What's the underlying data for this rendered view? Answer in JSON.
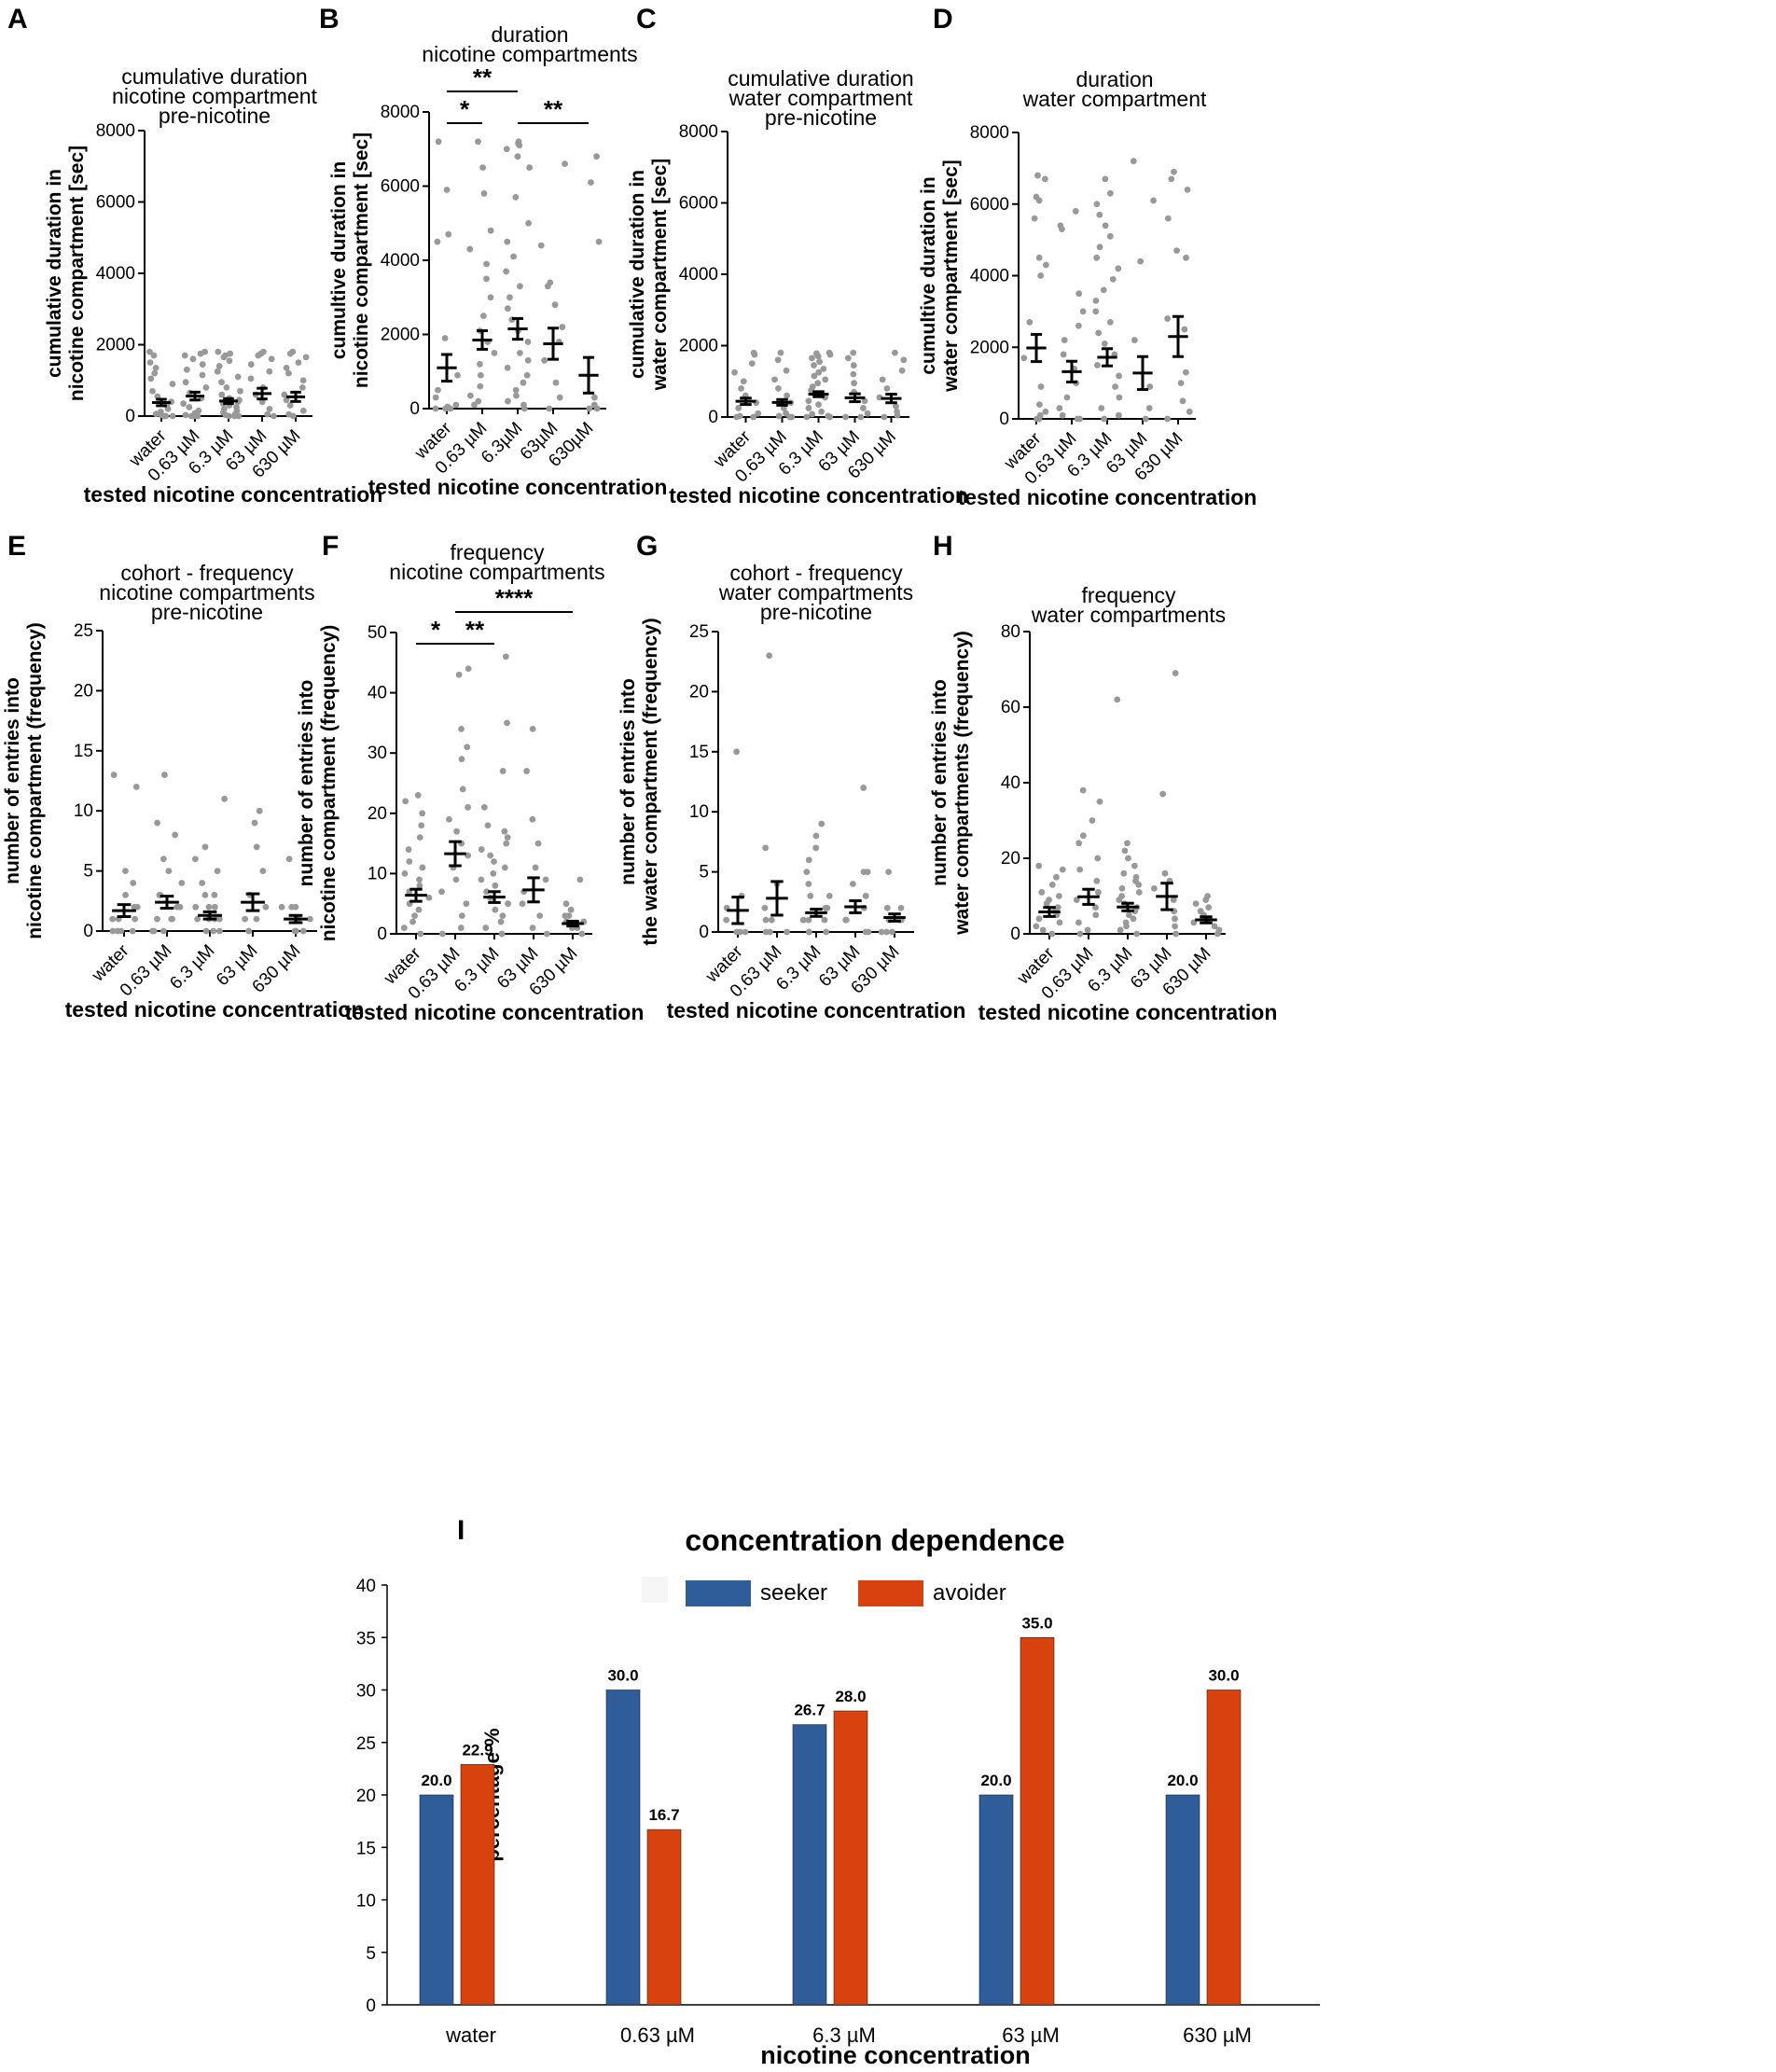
{
  "colors": {
    "dot": "#999999",
    "seeker": "#2f5d9a",
    "avoider": "#d8420f",
    "axis": "#000000"
  },
  "chart_data": [
    {
      "panel": "A",
      "type": "scatter",
      "title": [
        "cumulative duration",
        "nicotine compartment",
        "pre-nicotine"
      ],
      "ylabel": [
        "cumulative duration in",
        "nicotine compartment [sec]"
      ],
      "xlabel": "tested nicotine concentration",
      "categories": [
        "water",
        "0.63 µM",
        "6.3 µM",
        "63 µM",
        "630 µM"
      ],
      "ylim": [
        0,
        8000
      ],
      "yticks": [
        0,
        2000,
        4000,
        6000,
        8000
      ],
      "mean": [
        380,
        560,
        420,
        630,
        540
      ],
      "sem": [
        90,
        110,
        70,
        150,
        130
      ],
      "points": [
        [
          1800,
          1700,
          1500,
          1350,
          1200,
          1050,
          900,
          700,
          550,
          400,
          300,
          200,
          120,
          60,
          30,
          0,
          0,
          0
        ],
        [
          1800,
          1750,
          1700,
          1600,
          1450,
          1300,
          1150,
          950,
          800,
          650,
          500,
          350,
          250,
          150,
          80,
          30,
          0,
          0,
          0
        ],
        [
          1800,
          1750,
          1700,
          1650,
          1550,
          1400,
          1250,
          1100,
          950,
          800,
          700,
          600,
          500,
          450,
          400,
          350,
          300,
          250,
          200,
          150,
          100,
          50,
          30,
          0,
          0,
          0
        ],
        [
          1800,
          1750,
          1700,
          1600,
          1450,
          1250,
          1050,
          800,
          600,
          400,
          200,
          50,
          0
        ],
        [
          1800,
          1750,
          1650,
          1500,
          1350,
          1200,
          1000,
          800,
          600,
          450,
          300,
          150,
          50,
          0
        ]
      ],
      "significance": []
    },
    {
      "panel": "B",
      "type": "scatter",
      "title": [
        "duration",
        "nicotine compartments"
      ],
      "ylabel": [
        "cumultive duration in",
        "nicotine compartment [sec]"
      ],
      "xlabel": "tested nicotine concentration",
      "categories": [
        "water",
        "0.63 µM",
        "6.3µM",
        "63µM",
        "630µM"
      ],
      "ylim": [
        0,
        8000
      ],
      "yticks": [
        0,
        2000,
        4000,
        6000,
        8000
      ],
      "mean": [
        1100,
        1850,
        2150,
        1750,
        900
      ],
      "sem": [
        360,
        250,
        280,
        420,
        480
      ],
      "points": [
        [
          7200,
          5900,
          4700,
          4500,
          1900,
          900,
          500,
          300,
          100,
          50,
          0,
          0,
          0
        ],
        [
          7200,
          6500,
          5800,
          4800,
          4300,
          3900,
          3500,
          3000,
          2500,
          2100,
          1800,
          1500,
          1200,
          900,
          600,
          350,
          200,
          100
        ],
        [
          7200,
          7150,
          7100,
          7000,
          6800,
          6500,
          5700,
          5000,
          4500,
          4100,
          3700,
          3300,
          3000,
          2700,
          2400,
          2100,
          1800,
          1500,
          1300,
          1100,
          900,
          700,
          500,
          350,
          200,
          100,
          0
        ],
        [
          6600,
          4400,
          3400,
          3300,
          2800,
          2200,
          1800,
          1300,
          700,
          300,
          0
        ],
        [
          6800,
          6100,
          4500,
          300,
          100,
          0,
          0
        ]
      ],
      "significance": [
        {
          "from": 0,
          "to": 2,
          "label": "**",
          "level": 2
        },
        {
          "from": 0,
          "to": 1,
          "label": "*",
          "level": 1
        },
        {
          "from": 2,
          "to": 4,
          "label": "**",
          "level": 1
        }
      ]
    },
    {
      "panel": "C",
      "type": "scatter",
      "title": [
        "cumulative duration",
        "water compartment",
        "pre-nicotine"
      ],
      "ylabel": [
        "cumulative duration in",
        "water compartment [sec]"
      ],
      "xlabel": "tested nicotine concentration",
      "categories": [
        "water",
        "0.63 µM",
        "6.3 µM",
        "63 µM",
        "630 µM"
      ],
      "ylim": [
        0,
        8000
      ],
      "yticks": [
        0,
        2000,
        4000,
        6000,
        8000
      ],
      "mean": [
        440,
        410,
        640,
        540,
        520
      ],
      "sem": [
        90,
        80,
        70,
        110,
        120
      ],
      "points": [
        [
          1800,
          1750,
          1500,
          1250,
          1000,
          800,
          600,
          400,
          250,
          100,
          30,
          0,
          0
        ],
        [
          1800,
          1600,
          1300,
          1050,
          800,
          600,
          400,
          250,
          100,
          30,
          0,
          0
        ],
        [
          1800,
          1780,
          1750,
          1700,
          1650,
          1550,
          1450,
          1350,
          1250,
          1150,
          1050,
          950,
          850,
          750,
          650,
          550,
          450,
          350,
          250,
          150,
          80,
          30,
          0,
          0,
          0
        ],
        [
          1800,
          1650,
          1450,
          1200,
          950,
          700,
          450,
          250,
          100,
          0,
          0
        ],
        [
          1800,
          1600,
          1300,
          1050,
          800,
          550,
          300,
          150,
          50,
          0
        ]
      ],
      "significance": []
    },
    {
      "panel": "D",
      "type": "scatter",
      "title": [
        "duration",
        "water compartment"
      ],
      "ylabel": [
        "cumultive duration in",
        "water compartment [sec]"
      ],
      "xlabel": "tested nicotine concentration",
      "categories": [
        "water",
        "0.63 µM",
        "6.3 µM",
        "63 µM",
        "630 µM"
      ],
      "ylim": [
        0,
        8000
      ],
      "yticks": [
        0,
        2000,
        4000,
        6000,
        8000
      ],
      "mean": [
        1980,
        1320,
        1720,
        1280,
        2300
      ],
      "sem": [
        380,
        290,
        240,
        460,
        560
      ],
      "points": [
        [
          6800,
          6700,
          6200,
          6100,
          5600,
          4500,
          4300,
          4000,
          2700,
          1700,
          900,
          400,
          200,
          100,
          0,
          0
        ],
        [
          5800,
          5400,
          5300,
          3500,
          3000,
          2600,
          2200,
          1800,
          1400,
          1000,
          600,
          300,
          100,
          0,
          0
        ],
        [
          6700,
          6300,
          6000,
          5700,
          5400,
          5100,
          4800,
          4500,
          4200,
          3900,
          3600,
          3300,
          3000,
          2700,
          2400,
          2100,
          1800,
          1500,
          1200,
          900,
          600,
          300,
          100,
          0
        ],
        [
          7200,
          6100,
          4400,
          2200,
          900,
          300,
          0
        ],
        [
          6900,
          6700,
          6400,
          5600,
          4700,
          4500,
          2800,
          2500,
          1300,
          1000,
          500,
          200,
          0
        ]
      ],
      "significance": []
    },
    {
      "panel": "E",
      "type": "scatter",
      "title": [
        "cohort - frequency",
        "nicotine compartments",
        "pre-nicotine"
      ],
      "ylabel": [
        "number of entries into",
        "nicotine compartment (frequency)"
      ],
      "xlabel": "tested nicotine concentration",
      "categories": [
        "water",
        "0.63 µM",
        "6.3 µM",
        "63 µM",
        "630 µM"
      ],
      "ylim": [
        0,
        25
      ],
      "yticks": [
        0,
        5,
        10,
        15,
        20,
        25
      ],
      "mean": [
        1.7,
        2.4,
        1.3,
        2.4,
        1.0
      ],
      "sem": [
        0.5,
        0.5,
        0.3,
        0.7,
        0.3
      ],
      "points": [
        [
          13,
          12,
          5,
          4,
          3,
          2,
          2,
          1,
          1,
          1,
          0,
          0,
          0,
          0
        ],
        [
          13,
          9,
          8,
          6,
          5,
          4,
          3,
          3,
          2,
          2,
          1,
          1,
          1,
          0,
          0,
          0
        ],
        [
          11,
          7,
          6,
          5,
          4,
          3,
          3,
          2,
          2,
          2,
          1,
          1,
          1,
          1,
          0,
          0,
          0
        ],
        [
          10,
          9,
          7,
          5,
          3,
          2,
          1,
          1,
          0,
          0
        ],
        [
          6,
          2,
          2,
          2,
          1,
          1,
          1,
          0,
          0,
          0
        ]
      ],
      "significance": []
    },
    {
      "panel": "F",
      "type": "scatter",
      "title": [
        "frequency",
        "nicotine compartments"
      ],
      "ylabel": [
        "number of entries into",
        "nicotine compartment (frequency)"
      ],
      "xlabel": "tested nicotine concentration",
      "categories": [
        "water",
        "0.63 µM",
        "6.3 µM",
        "63 µM",
        "630 µM"
      ],
      "ylim": [
        0,
        50
      ],
      "yticks": [
        0,
        10,
        20,
        30,
        40,
        50
      ],
      "mean": [
        6.4,
        13.3,
        6.1,
        7.3,
        1.7
      ],
      "sem": [
        1.0,
        2.0,
        0.9,
        2.0,
        0.4
      ],
      "points": [
        [
          23,
          22,
          20,
          18,
          16,
          14,
          12,
          11,
          10,
          9,
          8,
          7,
          6,
          5,
          4,
          3,
          2,
          1,
          0
        ],
        [
          44,
          43,
          34,
          31,
          29,
          24,
          21,
          19,
          17,
          15,
          13,
          11,
          9,
          7,
          5,
          3,
          1,
          0
        ],
        [
          46,
          35,
          27,
          21,
          18,
          17,
          16,
          15,
          14,
          13,
          12,
          11,
          10,
          9,
          8,
          7,
          6,
          5,
          4,
          3,
          2,
          1,
          0
        ],
        [
          34,
          27,
          19,
          15,
          11,
          9,
          7,
          5,
          3,
          1,
          0
        ],
        [
          9,
          5,
          4,
          3,
          3,
          2,
          2,
          1,
          1,
          0
        ]
      ],
      "significance": [
        {
          "from": 1,
          "to": 4,
          "label": "****",
          "level": 2
        },
        {
          "from": 0,
          "to": 1,
          "label": "*",
          "level": 1
        },
        {
          "from": 1,
          "to": 2,
          "label": "**",
          "level": 1
        }
      ]
    },
    {
      "panel": "G",
      "type": "scatter",
      "title": [
        "cohort - frequency",
        "water compartments",
        "pre-nicotine"
      ],
      "ylabel": [
        "number of entries into",
        "the water compartment (frequency)"
      ],
      "xlabel": "tested nicotine concentration",
      "categories": [
        "water",
        "0.63 µM",
        "6.3 µM",
        "63 µM",
        "630 µM"
      ],
      "ylim": [
        0,
        25
      ],
      "yticks": [
        0,
        5,
        10,
        15,
        20,
        25
      ],
      "mean": [
        1.8,
        2.8,
        1.6,
        2.1,
        1.2
      ],
      "sem": [
        1.1,
        1.4,
        0.3,
        0.5,
        0.3
      ],
      "points": [
        [
          15,
          3,
          2,
          1,
          0,
          0,
          0
        ],
        [
          23,
          7,
          4,
          2,
          1,
          1,
          0,
          0,
          0
        ],
        [
          9,
          8,
          7,
          6,
          5,
          4,
          3,
          3,
          2,
          2,
          2,
          1,
          1,
          1,
          1,
          0,
          0,
          0
        ],
        [
          12,
          5,
          5,
          4,
          3,
          3,
          2,
          1,
          1,
          0,
          0
        ],
        [
          5,
          2,
          2,
          1,
          1,
          1,
          0,
          0,
          0
        ]
      ],
      "significance": []
    },
    {
      "panel": "H",
      "type": "scatter",
      "title": [
        "frequency",
        "water compartments"
      ],
      "ylabel": [
        "number of entries into",
        "water compartments (frequency)"
      ],
      "xlabel": "tested nicotine concentration",
      "categories": [
        "water",
        "0.63 µM",
        "6.3 µM",
        "63 µM",
        "630 µM"
      ],
      "ylim": [
        0,
        80
      ],
      "yticks": [
        0,
        20,
        40,
        60,
        80
      ],
      "mean": [
        5.8,
        9.8,
        7.1,
        9.9,
        3.7
      ],
      "sem": [
        1.2,
        2.0,
        1.0,
        3.5,
        0.8
      ],
      "points": [
        [
          18,
          17,
          15,
          13,
          11,
          10,
          9,
          8,
          7,
          6,
          5,
          4,
          3,
          2,
          1,
          0
        ],
        [
          38,
          35,
          30,
          26,
          24,
          20,
          17,
          14,
          11,
          9,
          7,
          5,
          3,
          1,
          0
        ],
        [
          62,
          24,
          22,
          20,
          18,
          16,
          15,
          14,
          13,
          12,
          11,
          10,
          9,
          8,
          7,
          6,
          5,
          4,
          3,
          2,
          1,
          0
        ],
        [
          69,
          37,
          16,
          14,
          12,
          9,
          6,
          4,
          2,
          0
        ],
        [
          10,
          9,
          8,
          7,
          6,
          5,
          4,
          3,
          2,
          1,
          0
        ]
      ],
      "significance": []
    },
    {
      "panel": "I",
      "type": "bar",
      "title": "concentration dependence",
      "xlabel": "nicotine concentration",
      "ylabel": "percentage %",
      "categories": [
        "water",
        "0.63 µM",
        "6.3 µM",
        "63 µM",
        "630 µM"
      ],
      "ylim": [
        0,
        40
      ],
      "yticks": [
        0,
        5,
        10,
        15,
        20,
        25,
        30,
        35,
        40
      ],
      "legend": [
        "seeker",
        "avoider"
      ],
      "series": [
        {
          "name": "seeker",
          "values": [
            20.0,
            30.0,
            26.7,
            20.0,
            20.0
          ],
          "labels": [
            "20.0",
            "30.0",
            "26.7",
            "20.0",
            "20.0"
          ]
        },
        {
          "name": "avoider",
          "values": [
            22.9,
            16.7,
            28.0,
            35.0,
            30.0
          ],
          "labels": [
            "22.9",
            "16.7",
            "28.0",
            "35.0",
            "30.0"
          ]
        }
      ]
    }
  ]
}
